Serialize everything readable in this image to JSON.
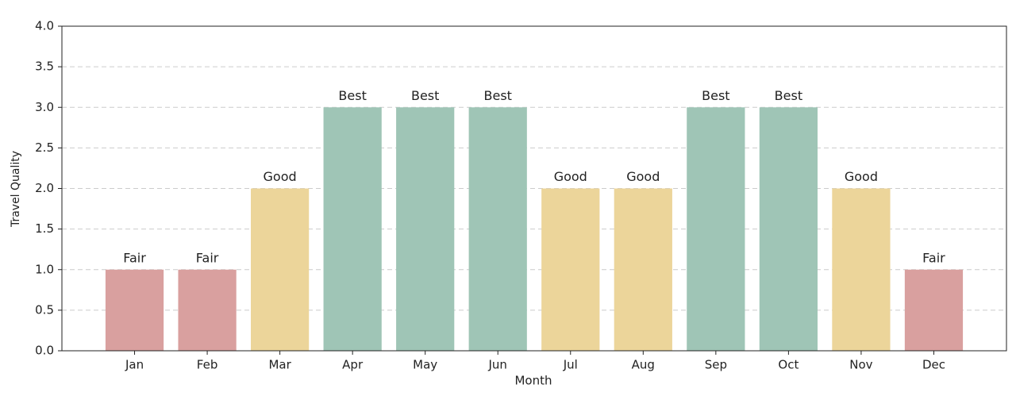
{
  "chart_data": {
    "type": "bar",
    "xlabel": "Month",
    "ylabel": "Travel Quality",
    "categories": [
      "Jan",
      "Feb",
      "Mar",
      "Apr",
      "May",
      "Jun",
      "Jul",
      "Aug",
      "Sep",
      "Oct",
      "Nov",
      "Dec"
    ],
    "values": [
      1,
      1,
      2,
      3,
      3,
      3,
      2,
      2,
      3,
      3,
      2,
      1
    ],
    "value_labels": [
      "Fair",
      "Fair",
      "Good",
      "Best",
      "Best",
      "Best",
      "Good",
      "Good",
      "Best",
      "Best",
      "Good",
      "Fair"
    ],
    "colors": [
      "#d9a09f",
      "#d9a09f",
      "#ecd59a",
      "#9fc5b6",
      "#9fc5b6",
      "#9fc5b6",
      "#ecd59a",
      "#ecd59a",
      "#9fc5b6",
      "#9fc5b6",
      "#ecd59a",
      "#d9a09f"
    ],
    "ylim": [
      0,
      4
    ],
    "yticks": [
      {
        "value": 0,
        "label": "0.0"
      },
      0.5,
      {
        "value": 1,
        "label": "1.0"
      },
      1.5,
      {
        "value": 2,
        "label": "2.0"
      },
      2.5,
      {
        "value": 3,
        "label": "3.0"
      },
      3.5,
      {
        "value": 4,
        "label": "4.0"
      }
    ],
    "grid": true
  }
}
